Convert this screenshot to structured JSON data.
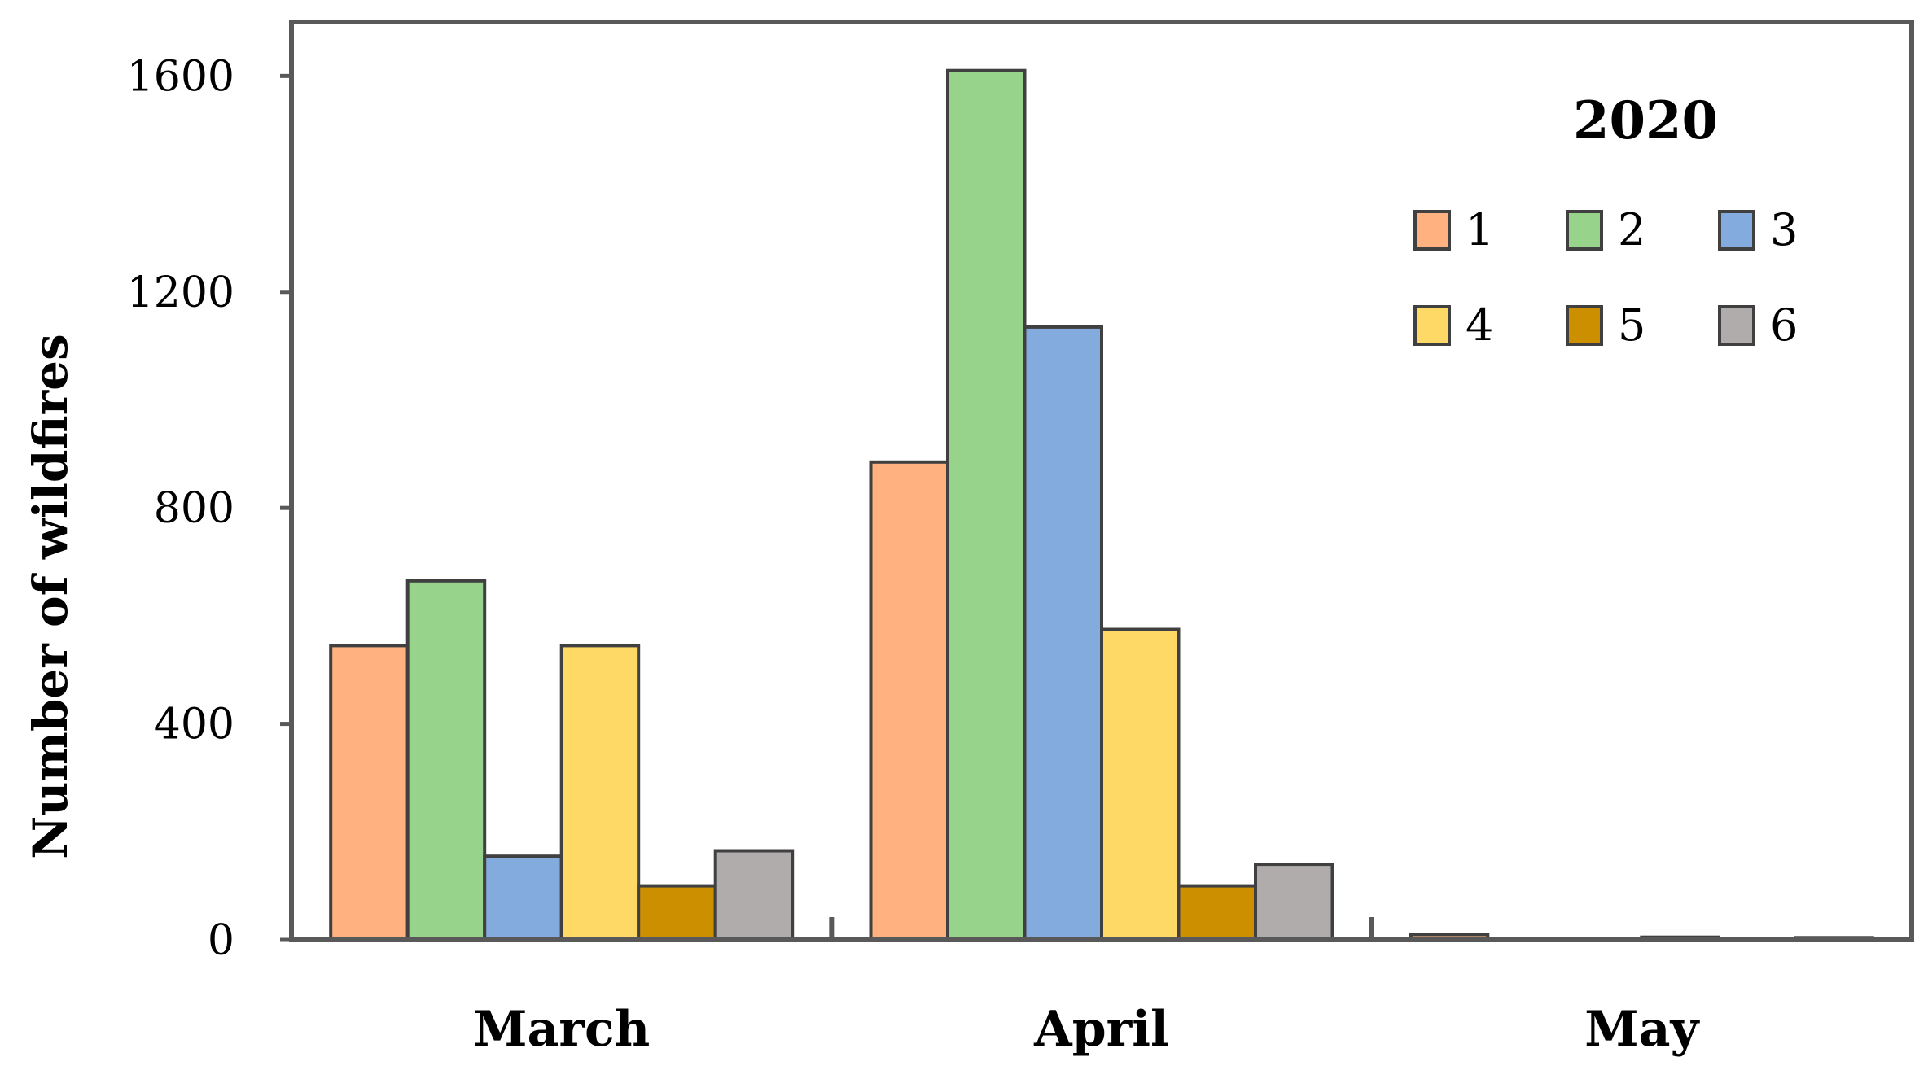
{
  "chart_data": {
    "type": "bar",
    "categories": [
      "March",
      "April",
      "May"
    ],
    "ylabel": "Number of wildfires",
    "ylim": [
      0,
      1700
    ],
    "yticks": [
      0,
      400,
      800,
      1200,
      1600
    ],
    "grid": false,
    "legend": {
      "title": "2020",
      "placement": "top-right"
    },
    "series": [
      {
        "name": "1",
        "color": "#FFB27F",
        "values": [
          545,
          885,
          10
        ]
      },
      {
        "name": "2",
        "color": "#97D38A",
        "values": [
          665,
          1610,
          0
        ]
      },
      {
        "name": "3",
        "color": "#84ABDD",
        "values": [
          155,
          1135,
          0
        ]
      },
      {
        "name": "4",
        "color": "#FFD966",
        "values": [
          545,
          575,
          5
        ]
      },
      {
        "name": "5",
        "color": "#CC8F00",
        "values": [
          100,
          100,
          0
        ]
      },
      {
        "name": "6",
        "color": "#B0ACAC",
        "values": [
          165,
          140,
          4
        ]
      }
    ]
  }
}
